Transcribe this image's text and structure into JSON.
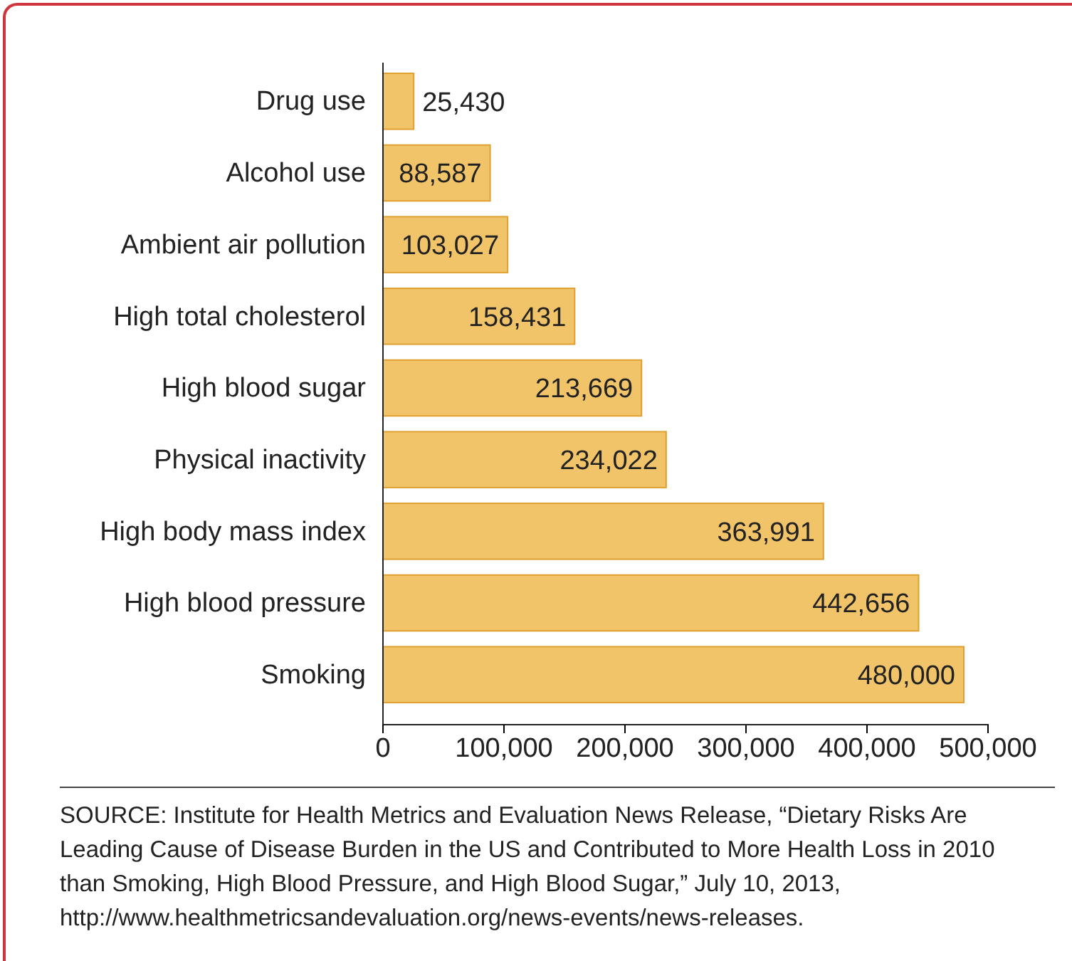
{
  "chart_data": {
    "type": "bar",
    "orientation": "horizontal",
    "categories": [
      "Drug use",
      "Alcohol use",
      "Ambient air pollution",
      "High total cholesterol",
      "High blood sugar",
      "Physical inactivity",
      "High body mass index",
      "High blood pressure",
      "Smoking"
    ],
    "values": [
      25430,
      88587,
      103027,
      158431,
      213669,
      234022,
      363991,
      442656,
      480000
    ],
    "color": "#f2c46a",
    "value_labels": [
      "25,430",
      "88,587",
      "103,027",
      "158,431",
      "213,669",
      "234,022",
      "363,991",
      "442,656",
      "480,000"
    ],
    "xlim": [
      0,
      500000
    ],
    "xticks": [
      {
        "value": 0,
        "label": "0"
      },
      {
        "value": 100000,
        "label": "100,000"
      },
      {
        "value": 200000,
        "label": "200,000"
      },
      {
        "value": 300000,
        "label": "300,000"
      },
      {
        "value": 400000,
        "label": "400,000"
      },
      {
        "value": 500000,
        "label": "500,000"
      }
    ],
    "grid": false,
    "annotations": [
      "SOURCE: Institute for Health Metrics and Evaluation News Release, “Dietary Risks Are Leading Cause of Disease Burden in the US and Contributed to More Health Loss in 2010 than Smoking, High Blood Pressure, and High Blood Sugar,” July 10, 2013, http://www.healthmetricsandevaluation.org/news-events/news-releases."
    ]
  }
}
